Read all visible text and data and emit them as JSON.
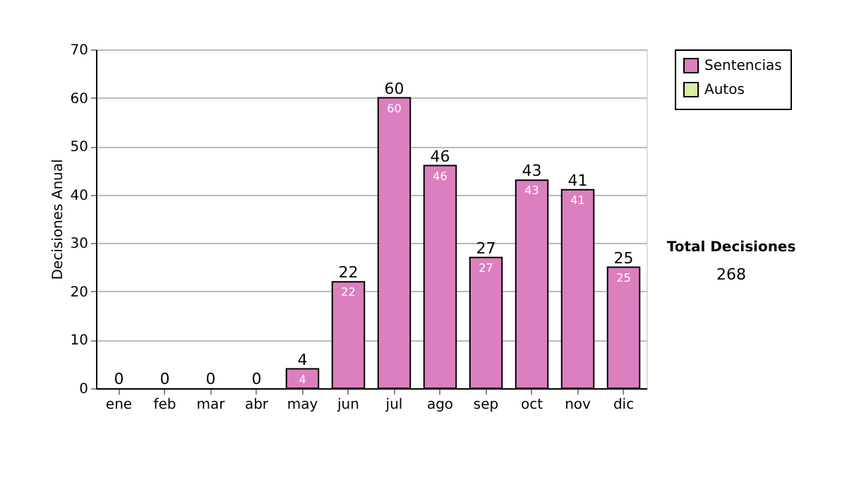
{
  "chart_data": {
    "type": "bar",
    "ylabel": "Decisiones Anual",
    "categories": [
      "ene",
      "feb",
      "mar",
      "abr",
      "may",
      "jun",
      "jul",
      "ago",
      "sep",
      "oct",
      "nov",
      "dic"
    ],
    "series": [
      {
        "name": "Sentencias",
        "color": "#dc7fbe",
        "values": [
          0,
          0,
          0,
          0,
          4,
          22,
          60,
          46,
          27,
          43,
          41,
          25
        ],
        "value_labels": [
          null,
          null,
          null,
          null,
          "4",
          "22",
          "60",
          "46",
          "27",
          "43",
          "41",
          "25"
        ]
      },
      {
        "name": "Autos",
        "color": "#d8eca4",
        "values": [
          0,
          0,
          0,
          0,
          0,
          0,
          0,
          0,
          0,
          0,
          0,
          0
        ]
      }
    ],
    "stacked": true,
    "totals": [
      "0",
      "0",
      "0",
      "0",
      "4",
      "22",
      "60",
      "46",
      "27",
      "43",
      "41",
      "25"
    ],
    "ylim": [
      0,
      70
    ],
    "yticks": [
      0,
      10,
      20,
      30,
      40,
      50,
      60,
      70
    ],
    "grid": "y",
    "legend": "right",
    "annotations": [
      "Total Decisiones",
      "268"
    ]
  }
}
